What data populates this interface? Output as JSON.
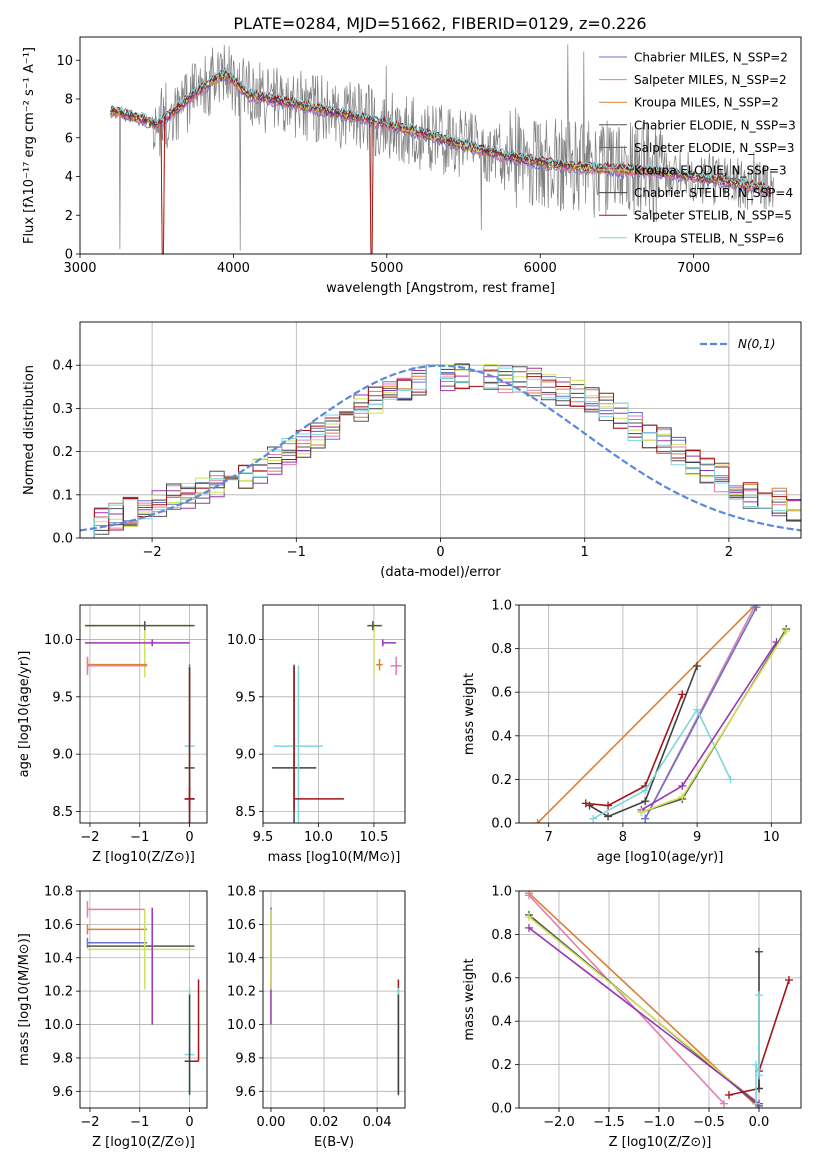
{
  "figure_title": "PLATE=0284, MJD=51662, FIBERID=0129, z=0.226",
  "colors": {
    "chabrier_miles": "#6a73c9",
    "salpeter_miles": "#e07fb0",
    "kroupa_miles": "#d9803a",
    "chabrier_elodie": "#555555",
    "salpeter_elodie": "#9a35b0",
    "kroupa_elodie": "#cfe35a",
    "chabrier_stelib": "#404040",
    "salpeter_stelib": "#a01518",
    "kroupa_stelib": "#7fd6dc",
    "data": "#808080",
    "normal_curve": "#5a8ad8"
  },
  "chart_data": [
    {
      "id": "spectrum",
      "type": "line",
      "xlabel": "wavelength [Angstrom, rest frame]",
      "ylabel": "Flux [fλ10⁻¹⁷ erg cm⁻² s⁻¹ A⁻¹]",
      "xlim": [
        3000,
        7700
      ],
      "ylim": [
        0,
        11.2
      ],
      "xticks": [
        3000,
        4000,
        5000,
        6000,
        7000
      ],
      "yticks": [
        0,
        2,
        4,
        6,
        8,
        10
      ],
      "grid": false,
      "legend_placement": "upper-right",
      "model_continuum": {
        "x": [
          3200,
          3350,
          3500,
          3650,
          3800,
          3950,
          4100,
          4300,
          4600,
          4900,
          5200,
          5500,
          5800,
          6100,
          6400,
          6700,
          7000,
          7300,
          7500
        ],
        "y": [
          7.4,
          7.1,
          6.7,
          7.6,
          8.6,
          9.3,
          8.2,
          7.9,
          7.4,
          6.9,
          6.3,
          5.6,
          5.0,
          4.6,
          4.4,
          4.3,
          4.0,
          3.6,
          3.3
        ]
      },
      "series": [
        {
          "name": "Chabrier MILES, N_SSP=2",
          "color_key": "chabrier_miles"
        },
        {
          "name": "Salpeter MILES, N_SSP=2",
          "color_key": "salpeter_miles"
        },
        {
          "name": "Kroupa MILES, N_SSP=2",
          "color_key": "kroupa_miles"
        },
        {
          "name": "Chabrier ELODIE, N_SSP=3",
          "color_key": "chabrier_elodie"
        },
        {
          "name": "Salpeter ELODIE, N_SSP=3",
          "color_key": "salpeter_elodie"
        },
        {
          "name": "Kroupa ELODIE, N_SSP=3",
          "color_key": "kroupa_elodie"
        },
        {
          "name": "Chabrier STELIB, N_SSP=4",
          "color_key": "chabrier_stelib"
        },
        {
          "name": "Salpeter STELIB, N_SSP=5",
          "color_key": "salpeter_stelib"
        },
        {
          "name": "Kroupa STELIB, N_SSP=6",
          "color_key": "kroupa_stelib"
        }
      ]
    },
    {
      "id": "residuals",
      "type": "histogram",
      "xlabel": "(data-model)/error",
      "ylabel": "Normed distribution",
      "xlim": [
        -2.5,
        2.5
      ],
      "ylim": [
        0,
        0.5
      ],
      "xticks": [
        -2,
        -1,
        0,
        1,
        2
      ],
      "yticks": [
        0.0,
        0.1,
        0.2,
        0.3,
        0.4
      ],
      "grid": true,
      "legend_placement": "upper-right",
      "reference_label": "N(0,1)",
      "bin_width": 0.1,
      "base_values": [
        0.03,
        0.04,
        0.05,
        0.06,
        0.07,
        0.08,
        0.09,
        0.1,
        0.11,
        0.12,
        0.13,
        0.14,
        0.16,
        0.18,
        0.2,
        0.22,
        0.24,
        0.26,
        0.28,
        0.3,
        0.32,
        0.34,
        0.35,
        0.36,
        0.37,
        0.37,
        0.38,
        0.38,
        0.37,
        0.37,
        0.37,
        0.36,
        0.35,
        0.34,
        0.33,
        0.32,
        0.3,
        0.28,
        0.26,
        0.24,
        0.22,
        0.2,
        0.18,
        0.16,
        0.14,
        0.12,
        0.1,
        0.09,
        0.08,
        0.07
      ]
    },
    {
      "id": "age_vs_Z",
      "type": "errorbar",
      "xlabel": "Z [log10(Z/Z⊙)]",
      "ylabel": "age  [log10(age/yr)]",
      "xlim": [
        -2.2,
        0.35
      ],
      "ylim": [
        8.4,
        10.3
      ],
      "xticks": [
        -2,
        -1,
        0
      ],
      "yticks": [
        8.5,
        9.0,
        9.5,
        10.0
      ],
      "grid": true,
      "points": [
        {
          "color_key": "kroupa_elodie",
          "x": -0.9,
          "xerr": [
            1.2,
            1.0
          ],
          "y": 10.12,
          "yerr": [
            0.45,
            0.03
          ]
        },
        {
          "color_key": "chabrier_elodie",
          "x": -0.9,
          "xerr": [
            1.2,
            1.0
          ],
          "y": 10.12,
          "yerr": [
            0.04,
            0.04
          ]
        },
        {
          "color_key": "salpeter_elodie",
          "x": -0.75,
          "xerr": [
            1.35,
            0.75
          ],
          "y": 9.97,
          "yerr": [
            0.03,
            0.03
          ]
        },
        {
          "color_key": "kroupa_miles",
          "x": -2.05,
          "xerr": [
            0.0,
            1.2
          ],
          "y": 9.78,
          "yerr": [
            0.05,
            0.05
          ]
        },
        {
          "color_key": "salpeter_miles",
          "x": -2.05,
          "xerr": [
            0.0,
            1.2
          ],
          "y": 9.77,
          "yerr": [
            0.08,
            0.08
          ]
        },
        {
          "color_key": "chabrier_stelib",
          "x": 0.0,
          "xerr": [
            0.1,
            0.1
          ],
          "y": 8.88,
          "yerr": [
            0.9,
            0.9
          ]
        },
        {
          "color_key": "kroupa_stelib",
          "x": 0.0,
          "xerr": [
            0.1,
            0.1
          ],
          "y": 9.07,
          "yerr": [
            0.7,
            0.7
          ]
        },
        {
          "color_key": "salpeter_stelib",
          "x": 0.0,
          "xerr": [
            0.1,
            0.1
          ],
          "y": 8.61,
          "yerr": [
            1.15,
            0.1
          ]
        },
        {
          "color_key": "salpeter_stelib",
          "x": 0.0,
          "xerr": [
            0.1,
            0.1
          ],
          "y": 8.61,
          "yerr": [
            0.1,
            1.15
          ]
        }
      ]
    },
    {
      "id": "age_vs_mass",
      "type": "errorbar",
      "xlabel": "mass [log10(M/M⊙)]",
      "ylabel": "",
      "xlim": [
        9.5,
        10.78
      ],
      "ylim": [
        8.4,
        10.3
      ],
      "xticks": [
        9.5,
        10.0,
        10.5
      ],
      "yticks": [
        8.5,
        9.0,
        9.5,
        10.0
      ],
      "grid": true,
      "points": [
        {
          "color_key": "kroupa_elodie",
          "x": 10.5,
          "xerr": [
            0.05,
            0.08
          ],
          "y": 10.12,
          "yerr": [
            0.45,
            0.03
          ]
        },
        {
          "color_key": "chabrier_elodie",
          "x": 10.49,
          "xerr": [
            0.05,
            0.08
          ],
          "y": 10.12,
          "yerr": [
            0.04,
            0.04
          ]
        },
        {
          "color_key": "salpeter_elodie",
          "x": 10.58,
          "xerr": [
            0.0,
            0.12
          ],
          "y": 9.97,
          "yerr": [
            0.03,
            0.03
          ]
        },
        {
          "color_key": "salpeter_miles",
          "x": 10.7,
          "xerr": [
            0.05,
            0.05
          ],
          "y": 9.77,
          "yerr": [
            0.08,
            0.08
          ]
        },
        {
          "color_key": "kroupa_miles",
          "x": 10.55,
          "xerr": [
            0.03,
            0.03
          ],
          "y": 9.78,
          "yerr": [
            0.05,
            0.05
          ]
        },
        {
          "color_key": "chabrier_stelib",
          "x": 9.78,
          "xerr": [
            0.2,
            0.2
          ],
          "y": 8.88,
          "yerr": [
            0.9,
            0.9
          ]
        },
        {
          "color_key": "kroupa_stelib",
          "x": 9.82,
          "xerr": [
            0.22,
            0.22
          ],
          "y": 9.07,
          "yerr": [
            0.7,
            0.7
          ]
        },
        {
          "color_key": "salpeter_stelib",
          "x": 9.78,
          "xerr": [
            0.0,
            0.45
          ],
          "y": 8.61,
          "yerr": [
            0.1,
            1.15
          ]
        }
      ]
    },
    {
      "id": "cum_mass_vs_age",
      "type": "line",
      "xlabel": "age  [log10(age/yr)]",
      "ylabel": "mass weight",
      "xlim": [
        6.6,
        10.4
      ],
      "ylim": [
        0,
        1.0
      ],
      "xticks": [
        7,
        8,
        9,
        10
      ],
      "yticks": [
        0.0,
        0.2,
        0.4,
        0.6,
        0.8,
        1.0
      ],
      "grid": true,
      "series": [
        {
          "color_key": "kroupa_miles",
          "x": [
            6.85,
            9.78
          ],
          "y": [
            0.0,
            1.0
          ]
        },
        {
          "color_key": "salpeter_miles",
          "x": [
            8.3,
            9.77
          ],
          "y": [
            0.02,
            0.99
          ]
        },
        {
          "color_key": "chabrier_miles",
          "x": [
            8.3,
            9.8
          ],
          "y": [
            0.02,
            0.99
          ]
        },
        {
          "color_key": "chabrier_stelib",
          "x": [
            7.55,
            7.8,
            8.3,
            9.0
          ],
          "y": [
            0.08,
            0.03,
            0.1,
            0.72
          ]
        },
        {
          "color_key": "salpeter_stelib",
          "x": [
            7.5,
            7.8,
            8.3,
            8.8
          ],
          "y": [
            0.09,
            0.08,
            0.17,
            0.59
          ]
        },
        {
          "color_key": "kroupa_stelib",
          "x": [
            7.6,
            8.3,
            9.0,
            9.45
          ],
          "y": [
            0.02,
            0.15,
            0.52,
            0.2
          ]
        },
        {
          "color_key": "salpeter_elodie",
          "x": [
            8.25,
            8.8,
            10.07
          ],
          "y": [
            0.06,
            0.17,
            0.83
          ]
        },
        {
          "color_key": "chabrier_elodie",
          "x": [
            8.25,
            8.8,
            10.2
          ],
          "y": [
            0.05,
            0.11,
            0.89
          ]
        },
        {
          "color_key": "kroupa_elodie",
          "x": [
            8.25,
            8.8,
            10.2
          ],
          "y": [
            0.05,
            0.12,
            0.88
          ]
        }
      ]
    },
    {
      "id": "mass_vs_Z",
      "type": "errorbar",
      "xlabel": "Z [log10(Z/Z⊙)]",
      "ylabel": "mass [log10(M/M⊙)]",
      "xlim": [
        -2.2,
        0.35
      ],
      "ylim": [
        9.5,
        10.8
      ],
      "xticks": [
        -2,
        -1,
        0
      ],
      "yticks": [
        9.6,
        9.8,
        10.0,
        10.2,
        10.4,
        10.6,
        10.8
      ],
      "grid": true,
      "points": [
        {
          "color_key": "salpeter_miles",
          "x": -2.05,
          "xerr": [
            0.0,
            1.15
          ],
          "y": 10.69,
          "yerr": [
            0.05,
            0.05
          ]
        },
        {
          "color_key": "kroupa_miles",
          "x": -2.05,
          "xerr": [
            0.0,
            1.2
          ],
          "y": 10.57,
          "yerr": [
            0.03,
            0.03
          ]
        },
        {
          "color_key": "chabrier_miles",
          "x": -2.05,
          "xerr": [
            0.0,
            1.2
          ],
          "y": 10.49,
          "yerr": [
            0.03,
            0.03
          ]
        },
        {
          "color_key": "chabrier_elodie",
          "x": -0.9,
          "xerr": [
            1.15,
            1.0
          ],
          "y": 10.47,
          "yerr": [
            0.1,
            0.1
          ]
        },
        {
          "color_key": "kroupa_elodie",
          "x": -0.9,
          "xerr": [
            1.15,
            1.0
          ],
          "y": 10.45,
          "yerr": [
            0.24,
            0.24
          ]
        },
        {
          "color_key": "salpeter_elodie",
          "x": -0.75,
          "xerr": [
            0.0,
            0.0
          ],
          "y": 10.35,
          "yerr": [
            0.35,
            0.35
          ]
        },
        {
          "color_key": "kroupa_stelib",
          "x": 0.0,
          "xerr": [
            0.1,
            0.1
          ],
          "y": 9.82,
          "yerr": [
            0.25,
            0.4
          ]
        },
        {
          "color_key": "chabrier_stelib",
          "x": 0.0,
          "xerr": [
            0.1,
            0.1
          ],
          "y": 9.78,
          "yerr": [
            0.2,
            0.4
          ]
        },
        {
          "color_key": "salpeter_stelib",
          "x": 0.18,
          "xerr": [
            0.2,
            0.0
          ],
          "y": 9.78,
          "yerr": [
            0.0,
            0.49
          ]
        }
      ]
    },
    {
      "id": "mass_vs_ebv",
      "type": "errorbar",
      "xlabel": "E(B-V)",
      "ylabel": "",
      "xlim": [
        -0.003,
        0.0505
      ],
      "ylim": [
        9.5,
        10.8
      ],
      "xticks": [
        0.0,
        0.02,
        0.04
      ],
      "yticks": [
        9.6,
        9.8,
        10.0,
        10.2,
        10.4,
        10.6,
        10.8
      ],
      "grid": true,
      "points": [
        {
          "color_key": "salpeter_elodie",
          "x": 0.0,
          "y": 10.35,
          "yerr": [
            0.35,
            0.35
          ]
        },
        {
          "color_key": "kroupa_elodie",
          "x": 0.0,
          "y": 10.45,
          "yerr": [
            0.24,
            0.24
          ]
        },
        {
          "color_key": "salpeter_stelib",
          "x": 0.048,
          "y": 9.78,
          "yerr": [
            0.2,
            0.49
          ]
        },
        {
          "color_key": "kroupa_stelib",
          "x": 0.048,
          "y": 9.82,
          "yerr": [
            0.25,
            0.4
          ]
        },
        {
          "color_key": "chabrier_stelib",
          "x": 0.048,
          "y": 9.78,
          "yerr": [
            0.2,
            0.4
          ]
        }
      ]
    },
    {
      "id": "cum_mass_vs_Z",
      "type": "line",
      "xlabel": "Z [log10(Z/Z⊙)]",
      "ylabel": "mass weight",
      "xlim": [
        -2.4,
        0.42
      ],
      "ylim": [
        0,
        1.0
      ],
      "xticks": [
        -2.0,
        -1.5,
        -1.0,
        -0.5,
        0.0
      ],
      "yticks": [
        0.0,
        0.2,
        0.4,
        0.6,
        0.8,
        1.0
      ],
      "grid": true,
      "series": [
        {
          "color_key": "kroupa_miles",
          "x": [
            -2.3,
            0.0
          ],
          "y": [
            0.99,
            0.0
          ]
        },
        {
          "color_key": "salpeter_miles",
          "x": [
            -2.3,
            -0.35
          ],
          "y": [
            0.98,
            0.02
          ]
        },
        {
          "color_key": "chabrier_elodie",
          "x": [
            -2.3,
            0.0
          ],
          "y": [
            0.89,
            0.01
          ]
        },
        {
          "color_key": "kroupa_elodie",
          "x": [
            -2.3,
            0.0
          ],
          "y": [
            0.88,
            0.02
          ]
        },
        {
          "color_key": "salpeter_elodie",
          "x": [
            -2.3,
            0.0
          ],
          "y": [
            0.83,
            0.02
          ]
        },
        {
          "color_key": "salpeter_stelib",
          "x": [
            -0.3,
            0.0,
            0.0,
            0.3
          ],
          "y": [
            0.06,
            0.09,
            0.17,
            0.59
          ]
        },
        {
          "color_key": "chabrier_stelib",
          "x": [
            0.0,
            0.0
          ],
          "y": [
            0.09,
            0.72
          ]
        },
        {
          "color_key": "kroupa_stelib",
          "x": [
            -0.03,
            -0.03,
            0.0,
            0.0
          ],
          "y": [
            0.02,
            0.2,
            0.15,
            0.52
          ]
        }
      ]
    }
  ]
}
